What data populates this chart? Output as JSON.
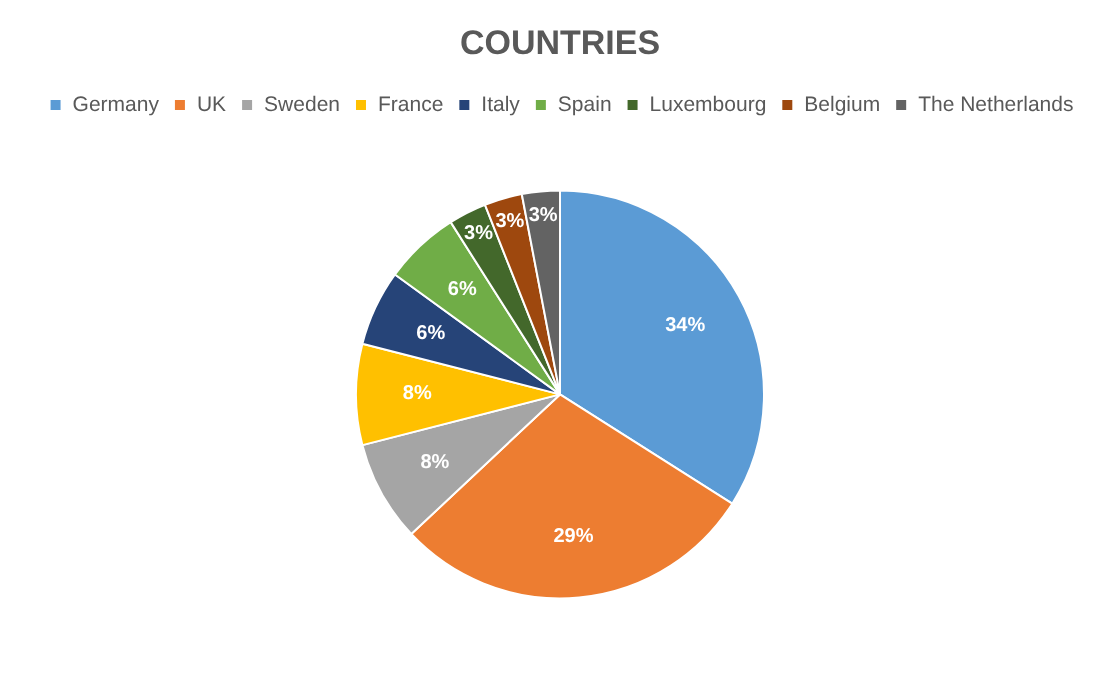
{
  "chart_data": {
    "type": "pie",
    "title": "COUNTRIES",
    "categories": [
      "Germany",
      "UK",
      "Sweden",
      "France",
      "Italy",
      "Spain",
      "Luxembourg",
      "Belgium",
      "The Netherlands"
    ],
    "values": [
      34,
      29,
      8,
      8,
      6,
      6,
      3,
      3,
      3
    ],
    "colors": [
      "#5b9bd5",
      "#ed7d31",
      "#a5a5a5",
      "#ffc000",
      "#264478",
      "#70ad47",
      "#43682b",
      "#9e480e",
      "#636363"
    ],
    "value_labels": [
      "34%",
      "29%",
      "8%",
      "8%",
      "6%",
      "6%",
      "3%",
      "3%",
      "3%"
    ],
    "legend": "top"
  }
}
